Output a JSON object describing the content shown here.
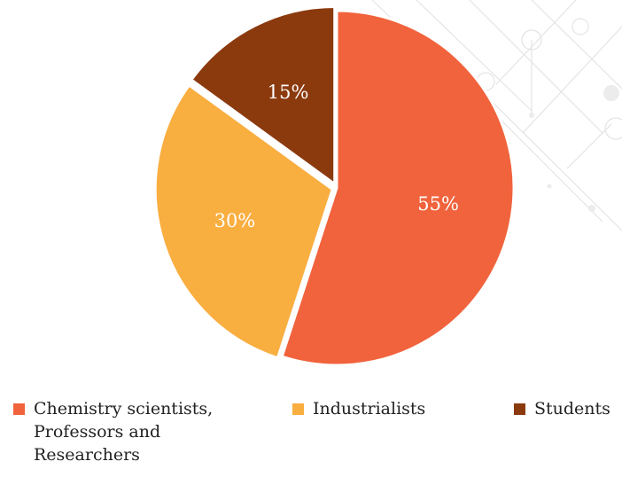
{
  "chart_data": {
    "type": "pie",
    "categories": [
      "Chemistry scientists, Professors and Researchers",
      "Industrialists",
      "Students"
    ],
    "values": [
      55,
      30,
      15
    ],
    "labels": [
      "55%",
      "30%",
      "15%"
    ],
    "colors": [
      "#F1633C",
      "#F9AE40",
      "#8B3A0E"
    ],
    "legend_position": "bottom",
    "start_angle_deg": 0,
    "direction": "clockwise"
  },
  "legend": [
    {
      "label_lines": [
        "Chemistry scientists,",
        "Professors and",
        "Researchers"
      ],
      "color": "#F1633C"
    },
    {
      "label_lines": [
        "Industrialists"
      ],
      "color": "#F9AE40"
    },
    {
      "label_lines": [
        "Students"
      ],
      "color": "#8B3A0E"
    }
  ]
}
